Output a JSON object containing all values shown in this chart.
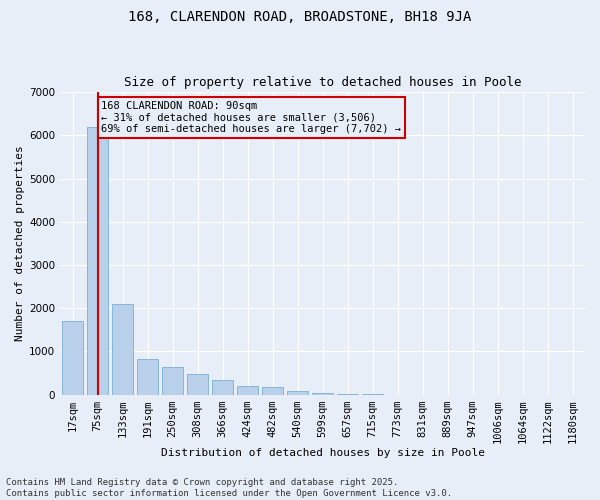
{
  "title_line1": "168, CLARENDON ROAD, BROADSTONE, BH18 9JA",
  "title_line2": "Size of property relative to detached houses in Poole",
  "xlabel": "Distribution of detached houses by size in Poole",
  "ylabel": "Number of detached properties",
  "categories": [
    "17sqm",
    "75sqm",
    "133sqm",
    "191sqm",
    "250sqm",
    "308sqm",
    "366sqm",
    "424sqm",
    "482sqm",
    "540sqm",
    "599sqm",
    "657sqm",
    "715sqm",
    "773sqm",
    "831sqm",
    "889sqm",
    "947sqm",
    "1006sqm",
    "1064sqm",
    "1122sqm",
    "1180sqm"
  ],
  "values": [
    1700,
    6200,
    2100,
    820,
    650,
    490,
    340,
    195,
    170,
    90,
    45,
    15,
    8,
    4,
    2,
    1,
    1,
    0,
    0,
    0,
    0
  ],
  "bar_color": "#b8d0ea",
  "bar_edge_color": "#7aafd4",
  "highlight_bar_index": 1,
  "vline_color": "#cc0000",
  "ylim": [
    0,
    7000
  ],
  "yticks": [
    0,
    1000,
    2000,
    3000,
    4000,
    5000,
    6000,
    7000
  ],
  "annotation_text": "168 CLARENDON ROAD: 90sqm\n← 31% of detached houses are smaller (3,506)\n69% of semi-detached houses are larger (7,702) →",
  "footer_line1": "Contains HM Land Registry data © Crown copyright and database right 2025.",
  "footer_line2": "Contains public sector information licensed under the Open Government Licence v3.0.",
  "bg_color": "#e8eef8",
  "title_fontsize": 10,
  "subtitle_fontsize": 9,
  "axis_fontsize": 8,
  "tick_fontsize": 7.5,
  "footer_fontsize": 6.5
}
